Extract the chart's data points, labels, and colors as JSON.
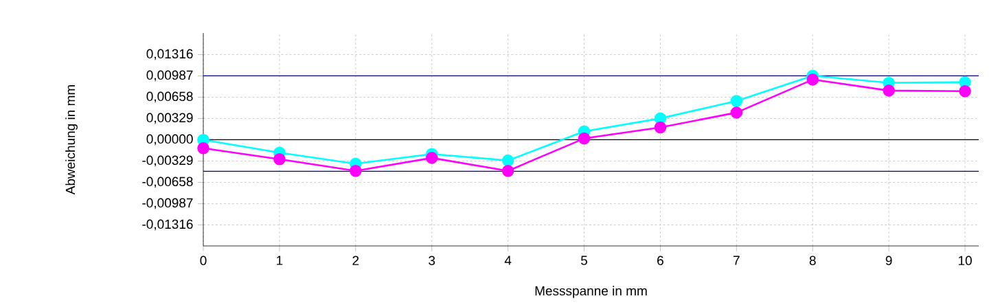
{
  "chart_data": {
    "type": "line",
    "xlabel": "Messspanne in mm",
    "ylabel": "Abweichung in mm",
    "x": [
      0,
      1,
      2,
      3,
      4,
      5,
      6,
      7,
      8,
      9,
      10
    ],
    "series": [
      {
        "color": "#00ffff",
        "values": [
          0.0,
          -0.002,
          -0.0037,
          -0.0022,
          -0.0032,
          0.0013,
          0.0033,
          0.006,
          0.0099,
          0.0088,
          0.0089
        ]
      },
      {
        "color": "#ff00ff",
        "values": [
          -0.0013,
          -0.003,
          -0.0048,
          -0.0028,
          -0.0048,
          0.0002,
          0.0019,
          0.0042,
          0.0093,
          0.0076,
          0.0075
        ]
      }
    ],
    "xlim": [
      0,
      10.18
    ],
    "xticks": [
      0,
      1,
      2,
      3,
      4,
      5,
      6,
      7,
      8,
      9,
      10
    ],
    "ylim": [
      -0.0164,
      0.0165
    ],
    "yticks": [
      {
        "value": 0.01316,
        "label": "0,01316"
      },
      {
        "value": 0.00987,
        "label": "0,00987"
      },
      {
        "value": 0.00658,
        "label": "0,00658"
      },
      {
        "value": 0.00329,
        "label": "0,00329"
      },
      {
        "value": 0,
        "label": "0,00000"
      },
      {
        "value": -0.00329,
        "label": "-0,00329"
      },
      {
        "value": -0.00658,
        "label": "-0,00658"
      },
      {
        "value": -0.00987,
        "label": "-0,00987"
      },
      {
        "value": -0.01316,
        "label": "-0,01316"
      }
    ],
    "ref_lines": [
      {
        "axis": "y",
        "value": 0.00987,
        "color": "#000080"
      },
      {
        "axis": "y",
        "value": -0.00488,
        "color": "#000080"
      },
      {
        "axis": "y",
        "value": 0,
        "color": "#000000"
      }
    ],
    "grid": true,
    "marker": "circle",
    "line_style": "solid"
  }
}
